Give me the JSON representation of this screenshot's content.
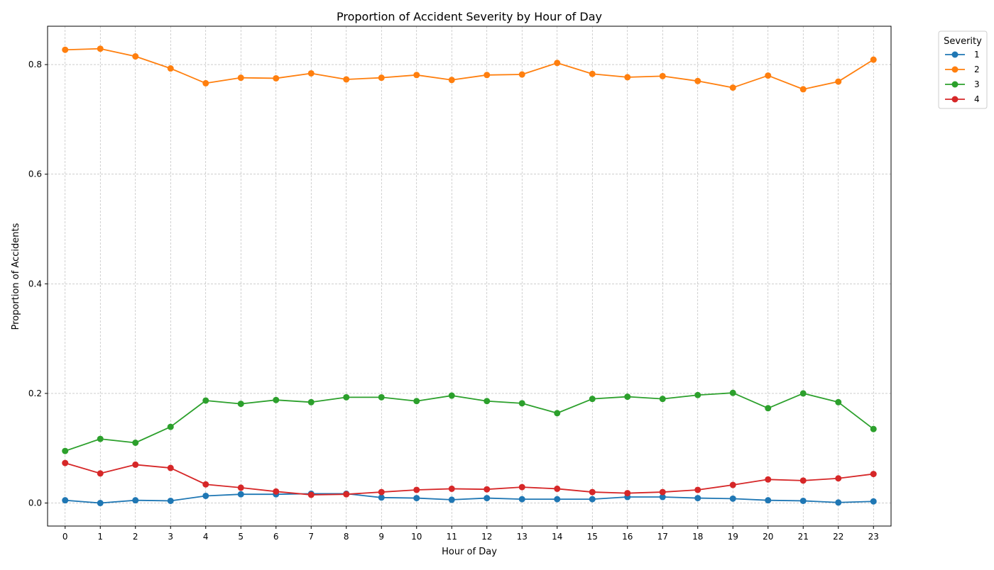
{
  "chart_data": {
    "type": "line",
    "title": "Proportion of Accident Severity by Hour of Day",
    "xlabel": "Hour of Day",
    "ylabel": "Proportion of Accidents",
    "x": [
      0,
      1,
      2,
      3,
      4,
      5,
      6,
      7,
      8,
      9,
      10,
      11,
      12,
      13,
      14,
      15,
      16,
      17,
      18,
      19,
      20,
      21,
      22,
      23
    ],
    "xticks": [
      "0",
      "1",
      "2",
      "3",
      "4",
      "5",
      "6",
      "7",
      "8",
      "9",
      "10",
      "11",
      "12",
      "13",
      "14",
      "15",
      "16",
      "17",
      "18",
      "19",
      "20",
      "21",
      "22",
      "23"
    ],
    "yticks": [
      "0.0",
      "0.2",
      "0.4",
      "0.6",
      "0.8"
    ],
    "ylim": [
      -0.042,
      0.87
    ],
    "xlim": [
      -0.5,
      23.5
    ],
    "grid": true,
    "legend": {
      "title": "Severity",
      "placement": "outside-top-right"
    },
    "series": [
      {
        "name": "1",
        "color": "#1f77b4",
        "values": [
          0.005,
          0.0,
          0.005,
          0.004,
          0.013,
          0.016,
          0.016,
          0.017,
          0.017,
          0.01,
          0.009,
          0.006,
          0.009,
          0.007,
          0.007,
          0.007,
          0.011,
          0.011,
          0.009,
          0.008,
          0.005,
          0.004,
          0.001,
          0.003
        ]
      },
      {
        "name": "2",
        "color": "#ff7f0e",
        "values": [
          0.827,
          0.829,
          0.815,
          0.793,
          0.766,
          0.776,
          0.775,
          0.784,
          0.773,
          0.776,
          0.781,
          0.772,
          0.781,
          0.782,
          0.803,
          0.783,
          0.777,
          0.779,
          0.77,
          0.758,
          0.78,
          0.755,
          0.769,
          0.809
        ]
      },
      {
        "name": "3",
        "color": "#2ca02c",
        "values": [
          0.095,
          0.117,
          0.11,
          0.139,
          0.187,
          0.181,
          0.188,
          0.184,
          0.193,
          0.193,
          0.186,
          0.196,
          0.186,
          0.182,
          0.164,
          0.19,
          0.194,
          0.19,
          0.197,
          0.201,
          0.173,
          0.2,
          0.184,
          0.135
        ]
      },
      {
        "name": "4",
        "color": "#d62728",
        "values": [
          0.073,
          0.054,
          0.07,
          0.064,
          0.034,
          0.028,
          0.021,
          0.015,
          0.016,
          0.02,
          0.024,
          0.026,
          0.025,
          0.029,
          0.026,
          0.02,
          0.018,
          0.02,
          0.024,
          0.033,
          0.043,
          0.041,
          0.045,
          0.053
        ]
      }
    ]
  }
}
